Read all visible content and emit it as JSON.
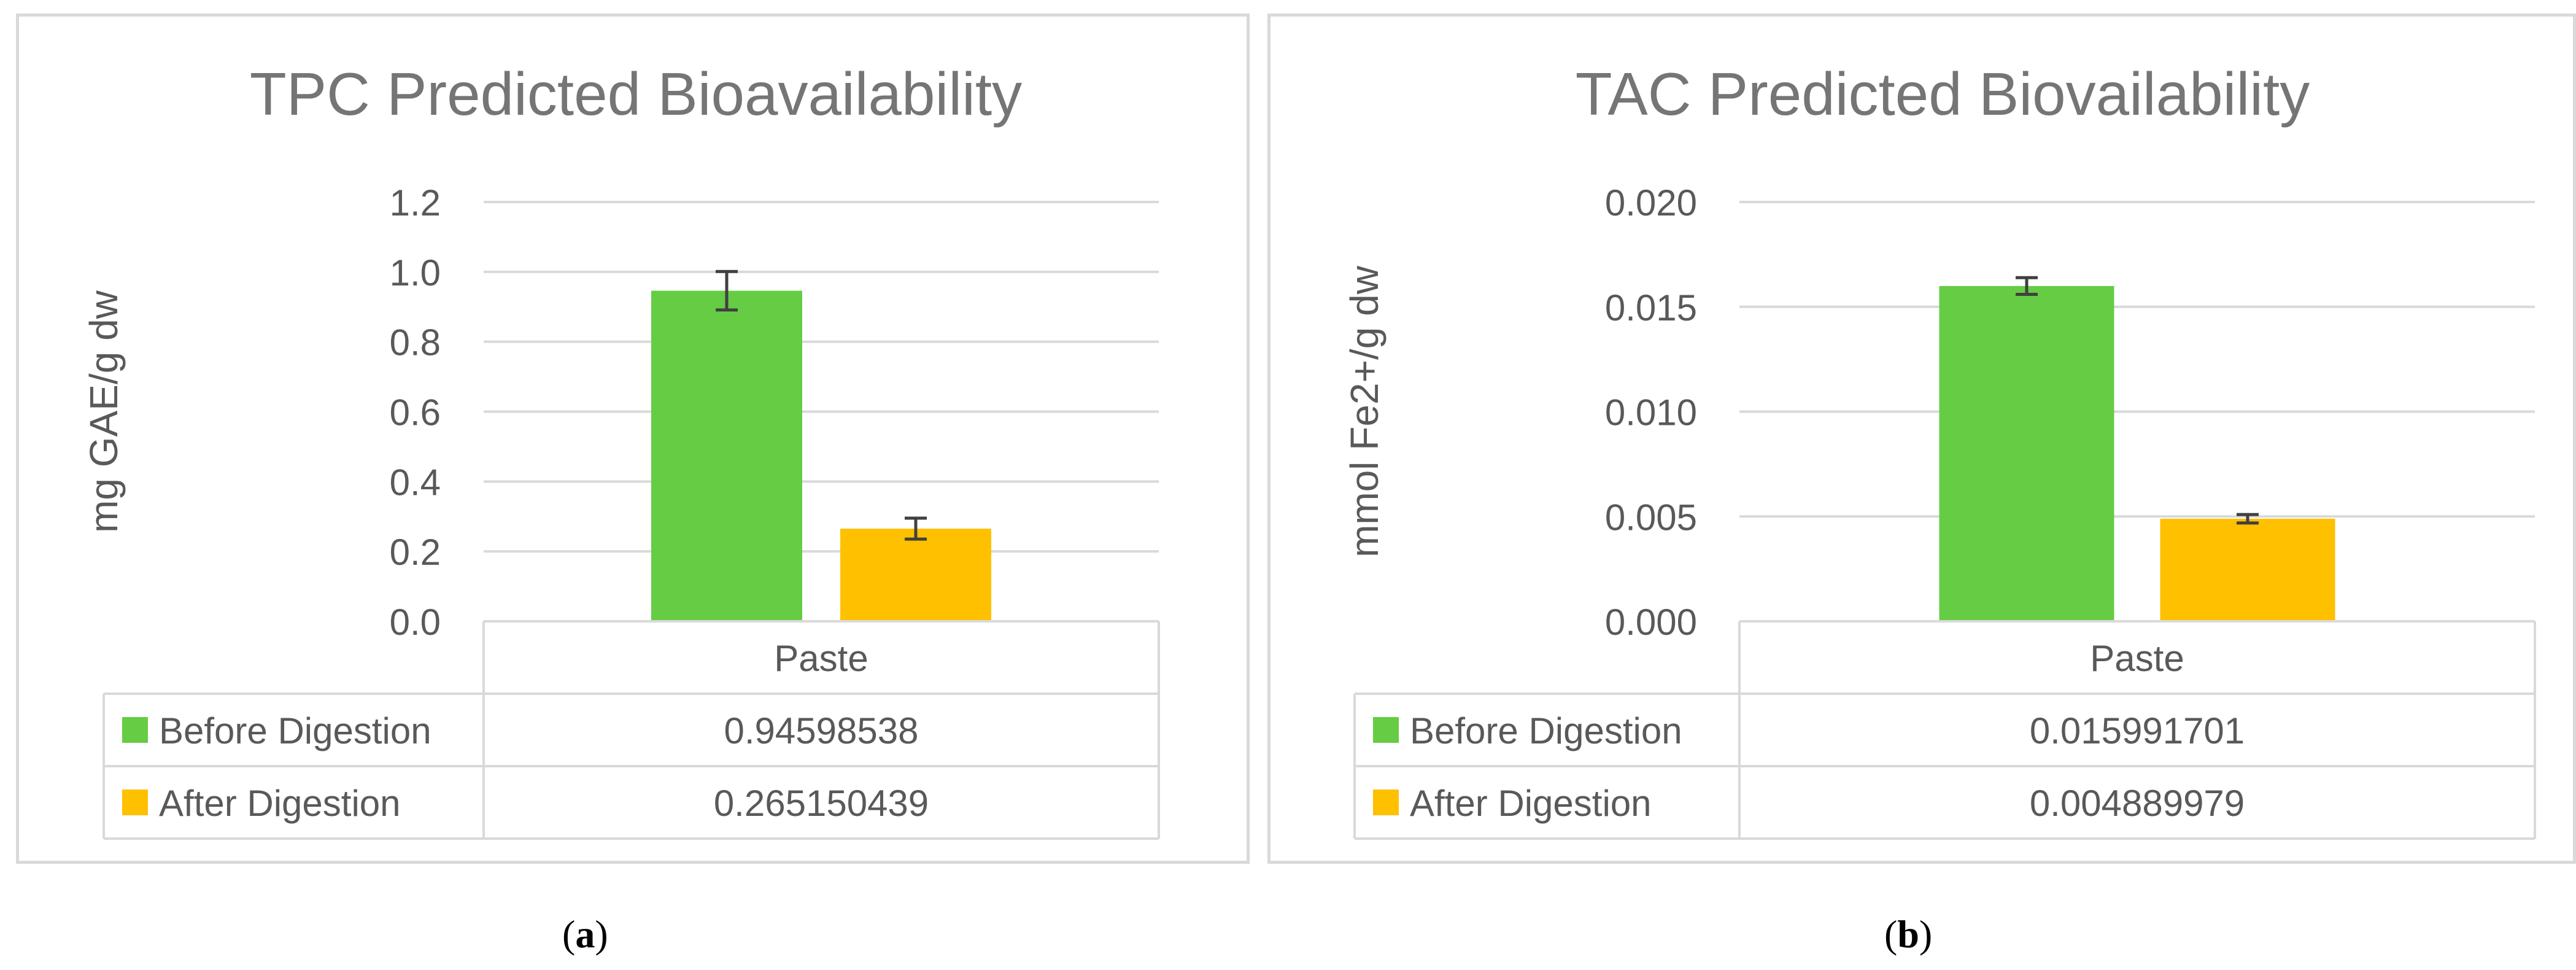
{
  "captions": [
    "a",
    "b"
  ],
  "colors": {
    "before": "#66cc44",
    "after": "#ffc000",
    "grid": "#d9d9d9",
    "axis_text": "#595959",
    "title": "#757575",
    "error": "#404040"
  },
  "chart_data": [
    {
      "type": "bar",
      "title": "TPC Predicted Bioavailability",
      "xlabel": "",
      "ylabel": "mg GAE/g dw",
      "categories": [
        "Paste"
      ],
      "ylim": [
        0,
        1.2
      ],
      "yticks": [
        "0.0",
        "0.2",
        "0.4",
        "0.6",
        "0.8",
        "1.0",
        "1.2"
      ],
      "grid": true,
      "legend": "data-table",
      "series": [
        {
          "name": "Before Digestion",
          "values": [
            0.94598538
          ],
          "error": [
            0.055
          ],
          "table_value": "0.94598538",
          "color": "#66cc44"
        },
        {
          "name": "After Digestion",
          "values": [
            0.265150439
          ],
          "error": [
            0.03
          ],
          "table_value": "0.265150439",
          "color": "#ffc000"
        }
      ]
    },
    {
      "type": "bar",
      "title": "TAC Predicted Biovailability",
      "xlabel": "",
      "ylabel": "mmol Fe2+/g dw",
      "categories": [
        "Paste"
      ],
      "ylim": [
        0,
        0.02
      ],
      "yticks": [
        "0.000",
        "0.005",
        "0.010",
        "0.015",
        "0.020"
      ],
      "grid": true,
      "legend": "data-table",
      "series": [
        {
          "name": "Before Digestion",
          "values": [
            0.015991701
          ],
          "error": [
            0.0004
          ],
          "table_value": "0.015991701",
          "color": "#66cc44"
        },
        {
          "name": "After Digestion",
          "values": [
            0.004889979
          ],
          "error": [
            0.0002
          ],
          "table_value": "0.004889979",
          "color": "#ffc000"
        }
      ]
    }
  ]
}
